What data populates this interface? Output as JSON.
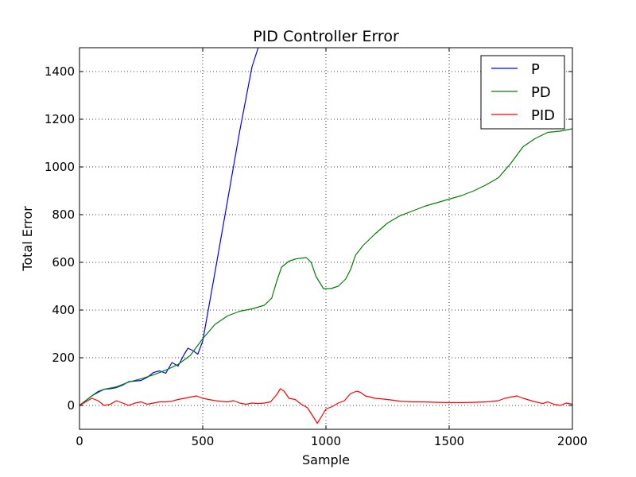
{
  "chart_data": {
    "type": "line",
    "title": "PID Controller Error",
    "xlabel": "Sample",
    "ylabel": "Total Error",
    "xlim": [
      0,
      2000
    ],
    "ylim": [
      -100,
      1500
    ],
    "xticks": [
      0,
      500,
      1000,
      1500,
      2000
    ],
    "yticks": [
      0,
      200,
      400,
      600,
      800,
      1000,
      1200,
      1400
    ],
    "grid": true,
    "legend_position": "top-right",
    "series": [
      {
        "name": "P",
        "color": "#0000ff",
        "x": [
          0,
          25,
          50,
          75,
          100,
          125,
          150,
          175,
          200,
          225,
          250,
          275,
          300,
          325,
          350,
          375,
          400,
          425,
          440,
          460,
          480,
          500,
          550,
          600,
          650,
          700,
          725
        ],
        "y": [
          0,
          20,
          40,
          58,
          68,
          70,
          75,
          85,
          100,
          102,
          105,
          118,
          138,
          145,
          135,
          180,
          165,
          215,
          240,
          230,
          215,
          270,
          560,
          855,
          1150,
          1420,
          1500
        ]
      },
      {
        "name": "PD",
        "color": "#008000",
        "x": [
          0,
          50,
          100,
          150,
          200,
          250,
          300,
          350,
          400,
          450,
          500,
          550,
          600,
          650,
          700,
          750,
          780,
          800,
          820,
          850,
          880,
          920,
          940,
          960,
          990,
          1020,
          1050,
          1080,
          1100,
          1120,
          1150,
          1200,
          1250,
          1300,
          1350,
          1400,
          1450,
          1500,
          1550,
          1600,
          1650,
          1700,
          1750,
          1800,
          1850,
          1900,
          1950,
          2000
        ],
        "y": [
          0,
          40,
          68,
          78,
          98,
          112,
          128,
          148,
          172,
          210,
          280,
          340,
          375,
          395,
          405,
          420,
          450,
          520,
          580,
          605,
          615,
          620,
          600,
          540,
          490,
          490,
          500,
          530,
          570,
          630,
          670,
          720,
          765,
          795,
          815,
          835,
          850,
          865,
          880,
          900,
          925,
          955,
          1015,
          1085,
          1120,
          1145,
          1150,
          1160
        ]
      },
      {
        "name": "PID",
        "color": "#ff0000",
        "x": [
          0,
          25,
          50,
          75,
          100,
          125,
          150,
          175,
          200,
          225,
          250,
          275,
          300,
          325,
          350,
          375,
          400,
          425,
          450,
          475,
          500,
          550,
          600,
          625,
          650,
          675,
          700,
          725,
          750,
          775,
          800,
          815,
          830,
          850,
          875,
          900,
          925,
          950,
          965,
          980,
          1000,
          1025,
          1050,
          1075,
          1100,
          1125,
          1140,
          1160,
          1200,
          1250,
          1300,
          1350,
          1400,
          1450,
          1500,
          1550,
          1600,
          1650,
          1700,
          1725,
          1750,
          1775,
          1800,
          1850,
          1880,
          1900,
          1925,
          1950,
          1975,
          2000
        ],
        "y": [
          0,
          15,
          30,
          20,
          0,
          5,
          20,
          10,
          0,
          10,
          15,
          5,
          10,
          15,
          15,
          18,
          25,
          30,
          35,
          40,
          30,
          20,
          15,
          20,
          10,
          5,
          10,
          8,
          10,
          15,
          45,
          70,
          60,
          30,
          25,
          5,
          -10,
          -50,
          -75,
          -50,
          -15,
          -5,
          10,
          20,
          50,
          60,
          55,
          40,
          30,
          25,
          18,
          15,
          15,
          13,
          12,
          12,
          13,
          15,
          20,
          30,
          35,
          40,
          30,
          15,
          8,
          15,
          5,
          0,
          10,
          5
        ]
      }
    ]
  }
}
